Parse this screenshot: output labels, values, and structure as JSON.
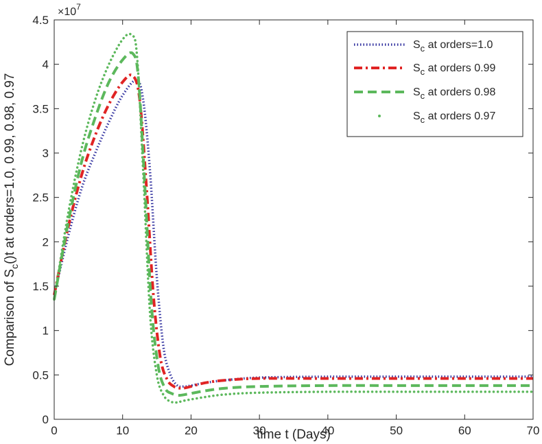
{
  "chart_data": {
    "type": "line",
    "xlabel": "time t (Days)",
    "ylabel": "Comparison of S_c()t at orders=1.0, 0.99, 0.98, 0.97",
    "y_multiplier": "×10^7",
    "xlim": [
      0,
      70
    ],
    "ylim": [
      0,
      4.5
    ],
    "x_ticks": [
      "0",
      "10",
      "20",
      "30",
      "40",
      "50",
      "60",
      "70"
    ],
    "y_ticks": [
      "0",
      "0.5",
      "1",
      "1.5",
      "2",
      "2.5",
      "3",
      "3.5",
      "4",
      "4.5"
    ],
    "grid": false,
    "legend_position": "top-right",
    "series": [
      {
        "name": "S_c at orders=1.0",
        "color": "#2e2e9e",
        "style": "dotted",
        "x": [
          0,
          2,
          4,
          6,
          8,
          10,
          12,
          13,
          14,
          15,
          16,
          17,
          18,
          19,
          20,
          22,
          25,
          30,
          40,
          50,
          60,
          70
        ],
        "y": [
          1.4,
          2.05,
          2.6,
          3.0,
          3.35,
          3.65,
          3.82,
          3.6,
          2.8,
          1.6,
          0.8,
          0.5,
          0.38,
          0.37,
          0.38,
          0.41,
          0.44,
          0.47,
          0.48,
          0.48,
          0.48,
          0.48
        ]
      },
      {
        "name": "S_c at orders 0.99",
        "color": "#e02424",
        "style": "dashdot",
        "x": [
          0,
          2,
          4,
          6,
          8,
          10,
          11.5,
          12.5,
          13.5,
          14.5,
          15.5,
          16.5,
          17.5,
          18.5,
          19.5,
          22,
          25,
          30,
          40,
          50,
          60,
          70
        ],
        "y": [
          1.4,
          2.15,
          2.75,
          3.2,
          3.55,
          3.8,
          3.87,
          3.6,
          2.6,
          1.4,
          0.7,
          0.45,
          0.37,
          0.35,
          0.36,
          0.41,
          0.44,
          0.46,
          0.46,
          0.46,
          0.46,
          0.46
        ]
      },
      {
        "name": "S_c at orders 0.98",
        "color": "#5cb85c",
        "style": "dashed",
        "x": [
          0,
          2,
          4,
          6,
          8,
          10,
          11.5,
          12.3,
          13.2,
          14.2,
          15.2,
          16.2,
          17.2,
          18.2,
          19.2,
          22,
          25,
          30,
          40,
          50,
          60,
          70
        ],
        "y": [
          1.35,
          2.2,
          2.9,
          3.4,
          3.8,
          4.05,
          4.12,
          3.85,
          2.7,
          1.3,
          0.6,
          0.35,
          0.29,
          0.27,
          0.28,
          0.32,
          0.35,
          0.37,
          0.38,
          0.38,
          0.38,
          0.38
        ]
      },
      {
        "name": "S_c at orders 0.97",
        "color": "#5cb85c",
        "style": "dots",
        "x": [
          0,
          2,
          4,
          6,
          8,
          10,
          11.3,
          12.1,
          13.0,
          14.0,
          15.0,
          16.0,
          17.0,
          18.0,
          19.0,
          22,
          25,
          30,
          40,
          50,
          60,
          70
        ],
        "y": [
          1.35,
          2.3,
          3.05,
          3.6,
          4.0,
          4.28,
          4.33,
          4.1,
          2.8,
          1.2,
          0.5,
          0.27,
          0.2,
          0.19,
          0.21,
          0.25,
          0.28,
          0.3,
          0.31,
          0.31,
          0.31,
          0.31
        ]
      }
    ]
  }
}
